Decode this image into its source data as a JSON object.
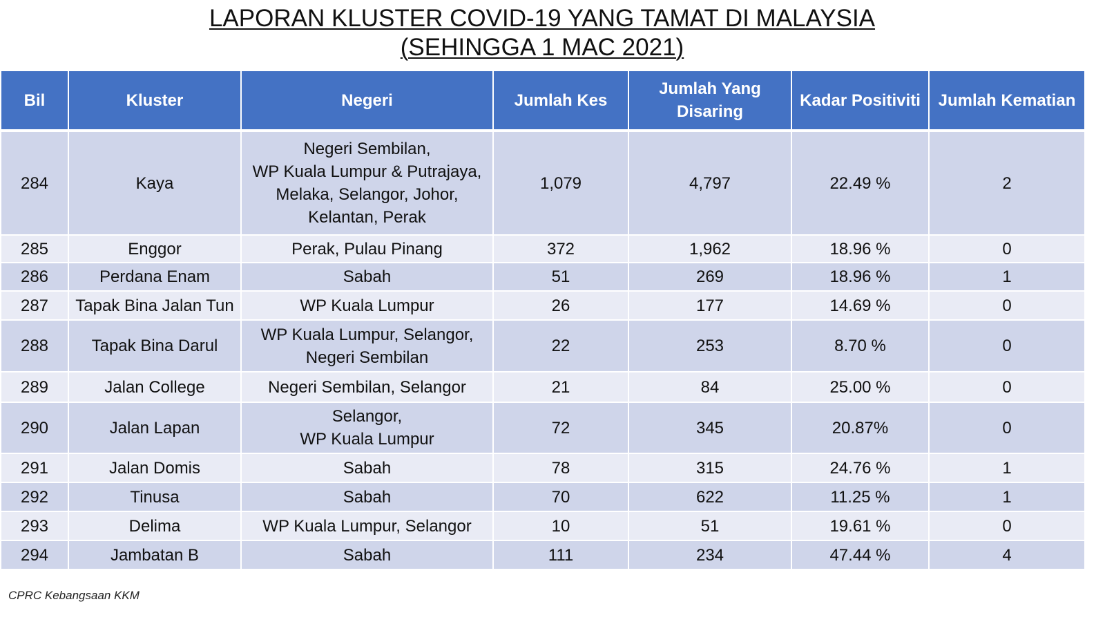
{
  "title": {
    "line1": "LAPORAN KLUSTER COVID-19 YANG TAMAT DI MALAYSIA",
    "line2": "(SEHINGGA  1 MAC 2021)"
  },
  "table": {
    "headers": {
      "bil": "Bil",
      "kluster": "Kluster",
      "negeri": "Negeri",
      "jumlah_kes": "Jumlah Kes",
      "jumlah_disaring_line1": "Jumlah Yang",
      "jumlah_disaring_line2": "Disaring",
      "kadar_positiviti": "Kadar Positiviti",
      "jumlah_kematian": "Jumlah Kematian"
    },
    "rows": [
      {
        "bil": "284",
        "kluster": "Kaya",
        "negeri": [
          "Negeri Sembilan,",
          "WP Kuala Lumpur & Putrajaya,",
          "Melaka, Selangor, Johor,",
          "Kelantan, Perak"
        ],
        "kes": "1,079",
        "disaring": "4,797",
        "positiviti": "22.49 %",
        "kematian": "2"
      },
      {
        "bil": "285",
        "kluster": "Enggor",
        "negeri": [
          "Perak, Pulau Pinang"
        ],
        "kes": "372",
        "disaring": "1,962",
        "positiviti": "18.96 %",
        "kematian": "0"
      },
      {
        "bil": "286",
        "kluster": "Perdana Enam",
        "negeri": [
          "Sabah"
        ],
        "kes": "51",
        "disaring": "269",
        "positiviti": "18.96 %",
        "kematian": "1"
      },
      {
        "bil": "287",
        "kluster": "Tapak Bina Jalan Tun",
        "negeri": [
          "WP Kuala Lumpur"
        ],
        "kes": "26",
        "disaring": "177",
        "positiviti": "14.69 %",
        "kematian": "0"
      },
      {
        "bil": "288",
        "kluster": "Tapak Bina Darul",
        "negeri": [
          "WP Kuala Lumpur, Selangor,",
          "Negeri Sembilan"
        ],
        "kes": "22",
        "disaring": "253",
        "positiviti": "8.70 %",
        "kematian": "0"
      },
      {
        "bil": "289",
        "kluster": "Jalan College",
        "negeri": [
          "Negeri Sembilan, Selangor"
        ],
        "kes": "21",
        "disaring": "84",
        "positiviti": "25.00 %",
        "kematian": "0"
      },
      {
        "bil": "290",
        "kluster": "Jalan Lapan",
        "negeri": [
          "Selangor,",
          "WP Kuala Lumpur"
        ],
        "kes": "72",
        "disaring": "345",
        "positiviti": "20.87%",
        "kematian": "0"
      },
      {
        "bil": "291",
        "kluster": "Jalan Domis",
        "negeri": [
          "Sabah"
        ],
        "kes": "78",
        "disaring": "315",
        "positiviti": "24.76 %",
        "kematian": "1"
      },
      {
        "bil": "292",
        "kluster": "Tinusa",
        "negeri": [
          "Sabah"
        ],
        "kes": "70",
        "disaring": "622",
        "positiviti": "11.25 %",
        "kematian": "1"
      },
      {
        "bil": "293",
        "kluster": "Delima",
        "negeri": [
          "WP Kuala Lumpur, Selangor"
        ],
        "kes": "10",
        "disaring": "51",
        "positiviti": "19.61 %",
        "kematian": "0"
      },
      {
        "bil": "294",
        "kluster": "Jambatan B",
        "negeri": [
          "Sabah"
        ],
        "kes": "111",
        "disaring": "234",
        "positiviti": "47.44 %",
        "kematian": "4"
      }
    ]
  },
  "footer": {
    "source": "CPRC Kebangsaan KKM"
  },
  "colors": {
    "header_bg": "#4472c4",
    "row_odd_bg": "#cfd5ea",
    "row_even_bg": "#e9ebf5"
  }
}
